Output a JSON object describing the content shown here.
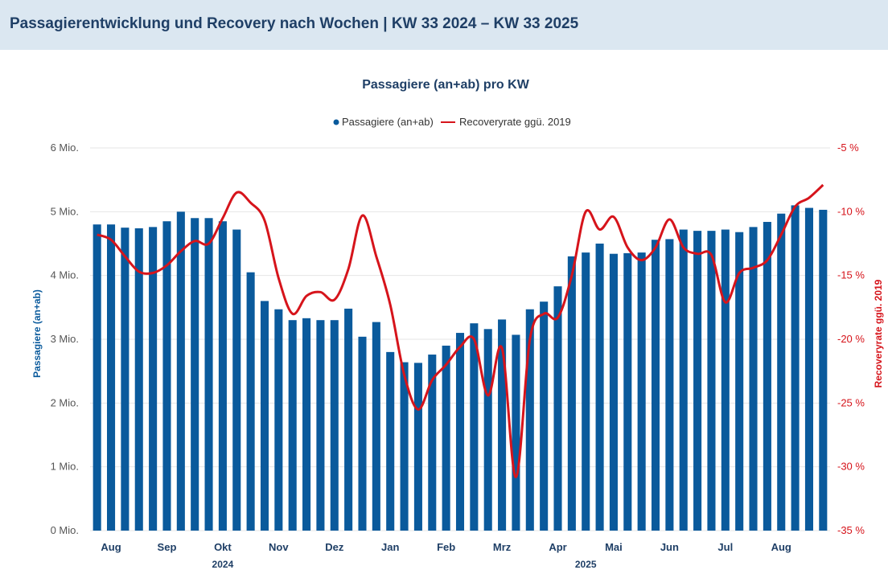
{
  "header": {
    "title": "Passagierentwicklung und Recovery nach Wochen | KW 33 2024 – KW 33 2025"
  },
  "chart_data": {
    "type": "bar",
    "title": "Passagiere (an+ab) pro KW",
    "ylabel": "Passagiere (an+ab)",
    "y2label": "Recoveryrate ggü. 2019",
    "ylim": [
      0,
      6
    ],
    "y2lim": [
      -35,
      -5
    ],
    "yticks": [
      "0 Mio.",
      "1 Mio.",
      "2 Mio.",
      "3 Mio.",
      "4 Mio.",
      "5 Mio.",
      "6 Mio."
    ],
    "y2ticks": [
      "-35 %",
      "-30 %",
      "-25 %",
      "-20 %",
      "-15 %",
      "-10 %",
      "-5 %"
    ],
    "legend_placement": "top-center",
    "grid": true,
    "colors": {
      "bars": "#0a5a9c",
      "line": "#d6141b"
    },
    "months": [
      {
        "label": "Aug",
        "week": 1.5
      },
      {
        "label": "Sep",
        "week": 5.5
      },
      {
        "label": "Okt",
        "week": 9.5
      },
      {
        "label": "Nov",
        "week": 13.5
      },
      {
        "label": "Dez",
        "week": 17.5
      },
      {
        "label": "Jan",
        "week": 21.5
      },
      {
        "label": "Feb",
        "week": 25.5
      },
      {
        "label": "Mrz",
        "week": 29.5
      },
      {
        "label": "Apr",
        "week": 33.5
      },
      {
        "label": "Mai",
        "week": 37.5
      },
      {
        "label": "Jun",
        "week": 41.5
      },
      {
        "label": "Jul",
        "week": 45.5
      },
      {
        "label": "Aug",
        "week": 49.5
      }
    ],
    "years": [
      {
        "label": "2024",
        "week": 9.5
      },
      {
        "label": "2025",
        "week": 35.5
      }
    ],
    "series": [
      {
        "name": "Passagiere (an+ab)",
        "type": "bar",
        "values": [
          4.8,
          4.8,
          4.75,
          4.74,
          4.76,
          4.85,
          5.0,
          4.9,
          4.9,
          4.85,
          4.72,
          4.05,
          3.6,
          3.47,
          3.3,
          3.33,
          3.3,
          3.3,
          3.48,
          3.04,
          3.27,
          2.8,
          2.64,
          2.63,
          2.76,
          2.9,
          3.1,
          3.25,
          3.16,
          3.31,
          3.07,
          3.47,
          3.59,
          3.83,
          4.3,
          4.36,
          4.5,
          4.34,
          4.35,
          4.36,
          4.56,
          4.57,
          4.72,
          4.7,
          4.7,
          4.72,
          4.68,
          4.76,
          4.84,
          4.97,
          5.1,
          5.06,
          5.03
        ]
      },
      {
        "name": "Recoveryrate ggü. 2019",
        "type": "line",
        "values": [
          -11.8,
          -12.2,
          -13.5,
          -14.7,
          -14.8,
          -14.2,
          -13.1,
          -12.3,
          -12.5,
          -10.5,
          -8.5,
          -9.3,
          -10.7,
          -15.2,
          -18.0,
          -16.6,
          -16.3,
          -16.9,
          -14.5,
          -10.3,
          -13.5,
          -17.3,
          -22.8,
          -25.5,
          -23.2,
          -22.0,
          -20.6,
          -20.0,
          -24.4,
          -20.7,
          -30.8,
          -20.0,
          -18.0,
          -18.3,
          -15.0,
          -10.0,
          -11.4,
          -10.4,
          -12.8,
          -13.8,
          -12.8,
          -10.6,
          -12.8,
          -13.3,
          -13.4,
          -17.1,
          -14.8,
          -14.4,
          -13.8,
          -11.8,
          -9.6,
          -8.9,
          -7.9
        ]
      }
    ]
  }
}
